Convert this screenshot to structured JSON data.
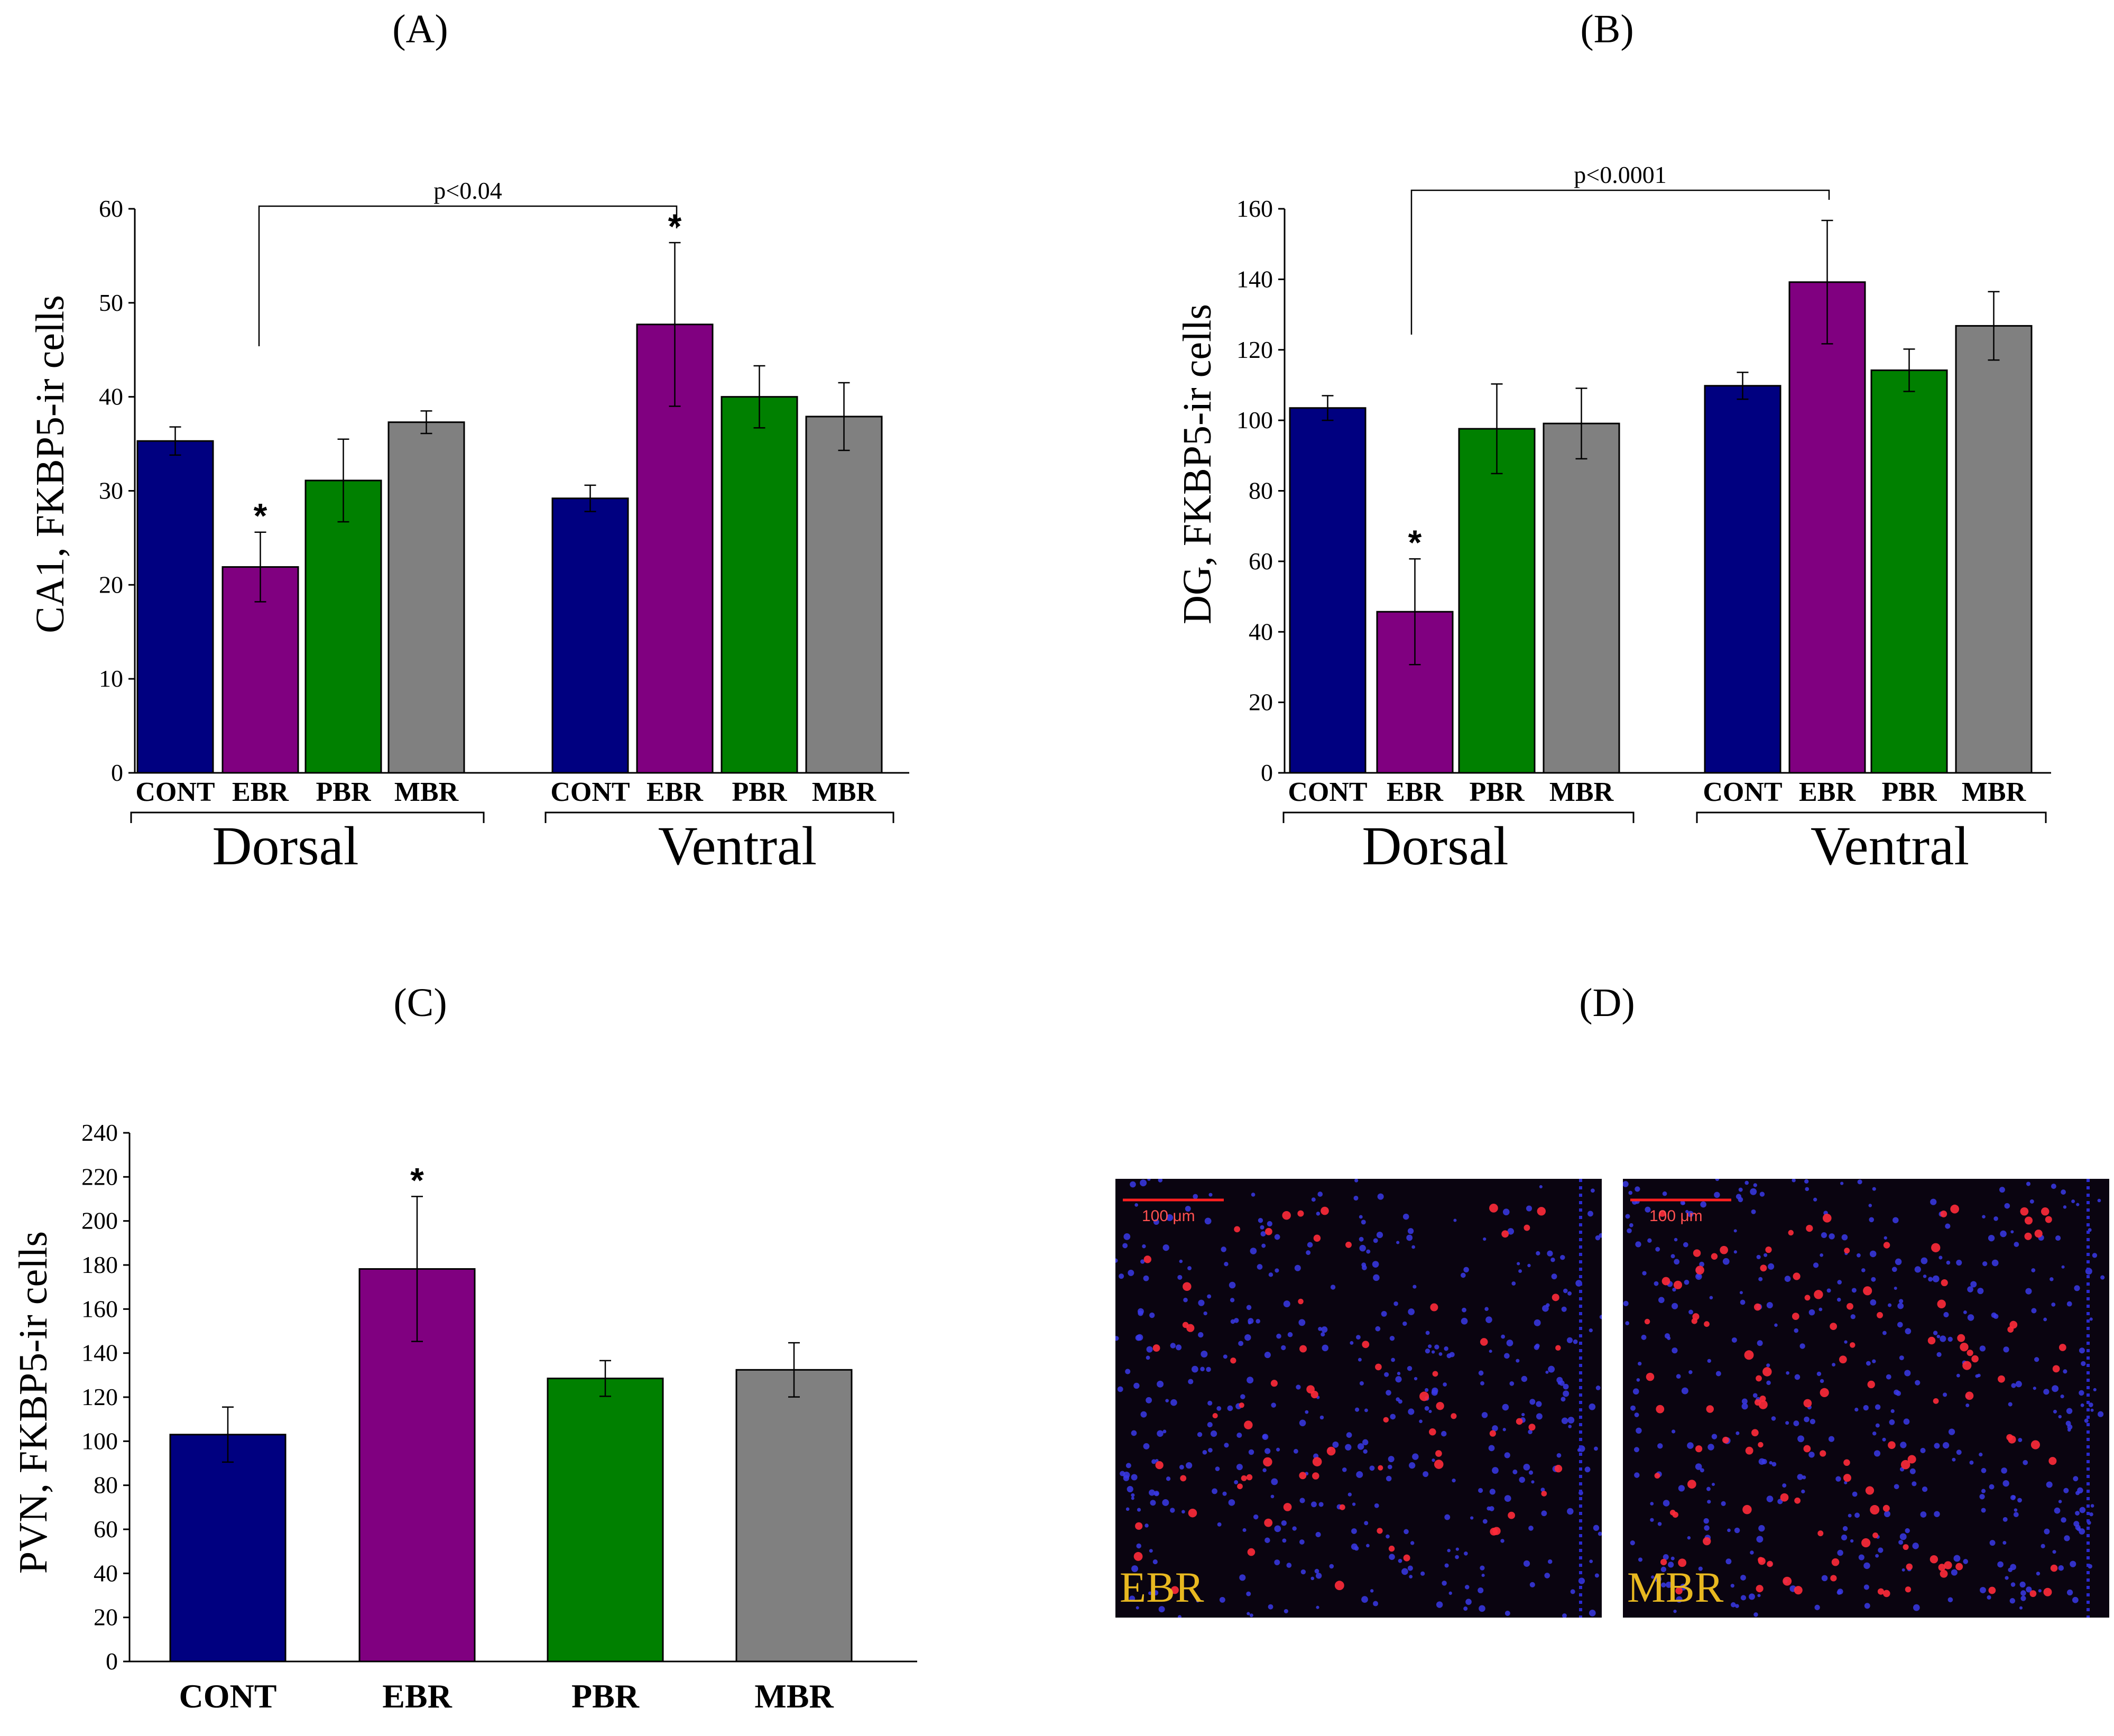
{
  "colors": {
    "CONT": "#000080",
    "EBR": "#800080",
    "PBR": "#008000",
    "MBR": "#808080",
    "micro_label": "#e8b820",
    "scale": "#ff2020"
  },
  "chart_data": [
    {
      "id": "A",
      "type": "bar",
      "title": "(A)",
      "ylabel": "CA1, FKBP5-ir cells",
      "ylim": [
        0,
        60
      ],
      "yticks": [
        "0",
        "10",
        "20",
        "30",
        "40",
        "50",
        "60"
      ],
      "groups": [
        {
          "name": "Dorsal",
          "categories": [
            "CONT",
            "EBR",
            "PBR",
            "MBR"
          ],
          "values": [
            35.3,
            21.9,
            31.1,
            37.3
          ],
          "errors": [
            1.5,
            3.7,
            4.4,
            1.2
          ],
          "sig": [
            "",
            "*",
            "",
            ""
          ]
        },
        {
          "name": "Ventral",
          "categories": [
            "CONT",
            "EBR",
            "PBR",
            "MBR"
          ],
          "values": [
            29.2,
            47.7,
            40.0,
            37.9
          ],
          "errors": [
            1.4,
            8.7,
            3.3,
            3.6
          ],
          "sig": [
            "",
            "*",
            "",
            ""
          ]
        }
      ],
      "comparison": "p<0.04"
    },
    {
      "id": "B",
      "type": "bar",
      "title": "(B)",
      "ylabel": "DG, FKBP5-ir cells",
      "ylim": [
        0,
        160
      ],
      "yticks": [
        "0",
        "20",
        "40",
        "60",
        "80",
        "100",
        "120",
        "140",
        "160"
      ],
      "groups": [
        {
          "name": "Dorsal",
          "categories": [
            "CONT",
            "EBR",
            "PBR",
            "MBR"
          ],
          "values": [
            103.5,
            45.7,
            97.6,
            99.1
          ],
          "errors": [
            3.5,
            15.0,
            12.7,
            10.0
          ],
          "sig": [
            "",
            "*",
            "",
            ""
          ]
        },
        {
          "name": "Ventral",
          "categories": [
            "CONT",
            "EBR",
            "PBR",
            "MBR"
          ],
          "values": [
            109.8,
            139.2,
            114.2,
            126.8
          ],
          "errors": [
            3.8,
            17.5,
            6.0,
            9.7
          ],
          "sig": [
            "",
            "",
            "",
            ""
          ]
        }
      ],
      "comparison": "p<0.0001"
    },
    {
      "id": "C",
      "type": "bar",
      "title": "(C)",
      "ylabel": "PVN, FKBP5-ir cells",
      "ylim": [
        0,
        240
      ],
      "yticks": [
        "0",
        "20",
        "40",
        "60",
        "80",
        "100",
        "120",
        "140",
        "160",
        "180",
        "200",
        "220",
        "240"
      ],
      "groups": [
        {
          "name": "",
          "categories": [
            "CONT",
            "EBR",
            "PBR",
            "MBR"
          ],
          "values": [
            103.0,
            178.2,
            128.5,
            132.4
          ],
          "errors": [
            12.5,
            32.9,
            8.1,
            12.3
          ],
          "sig": [
            "",
            "*",
            "",
            ""
          ]
        }
      ]
    }
  ],
  "panel_d": {
    "title": "(D)",
    "images": [
      {
        "label": "EBR",
        "scale_bar": "100 μm"
      },
      {
        "label": "MBR",
        "scale_bar": "100 μm"
      }
    ]
  }
}
